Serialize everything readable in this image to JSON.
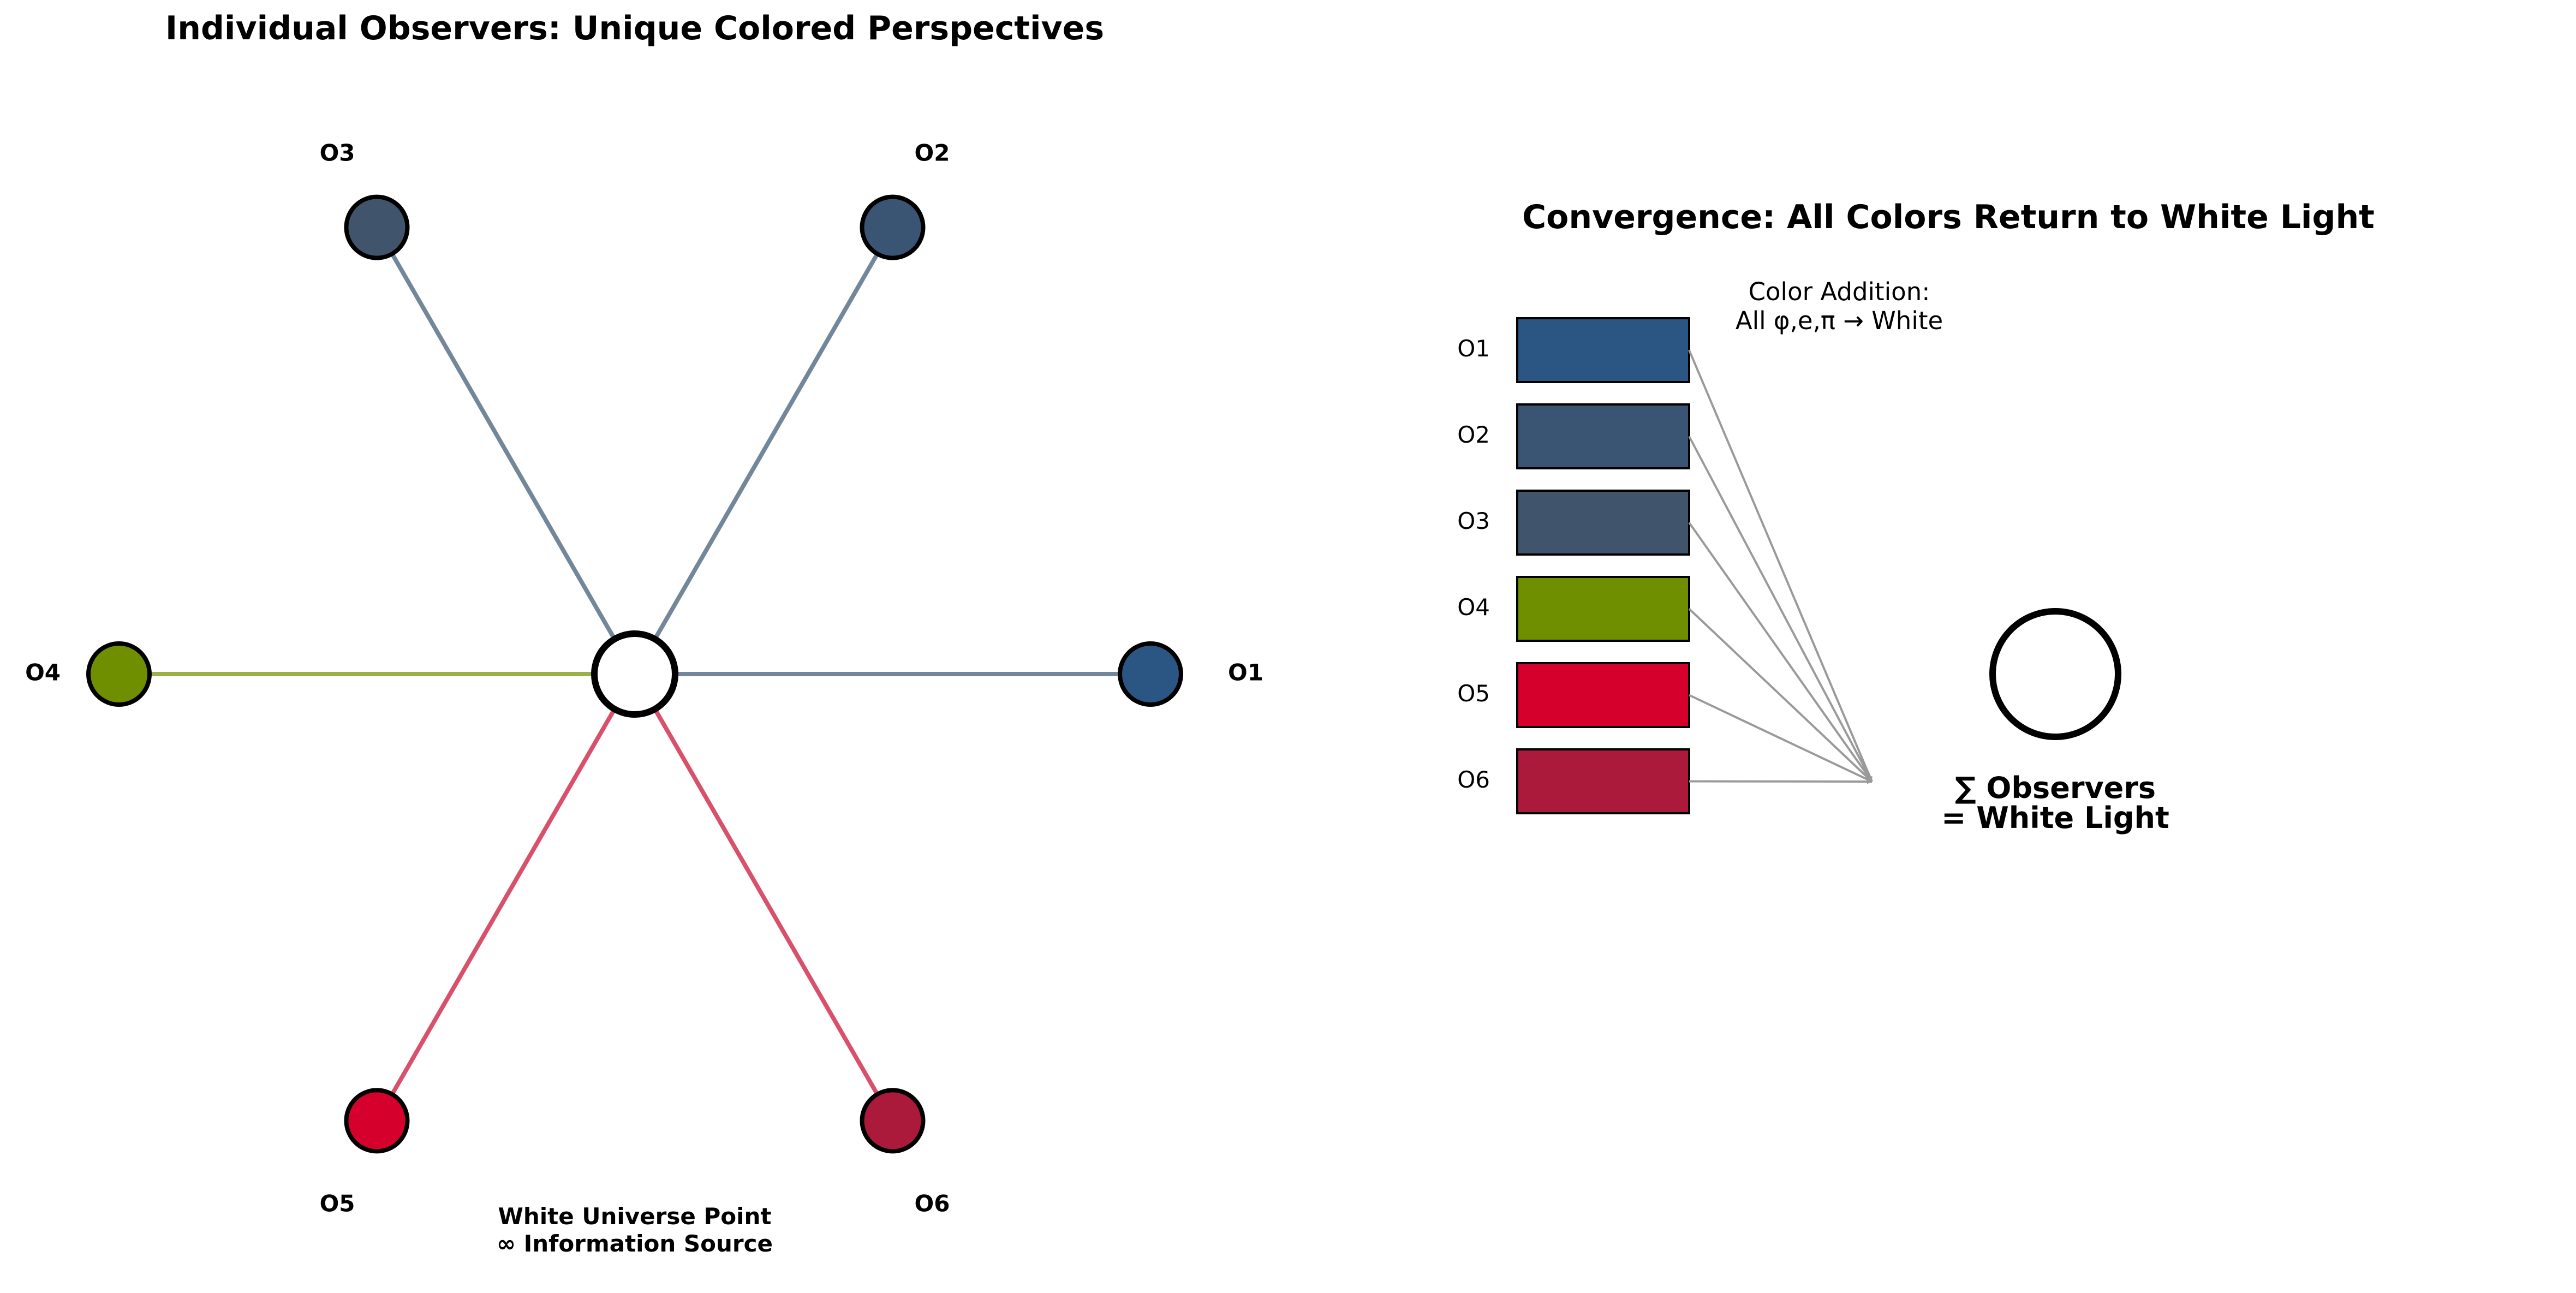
{
  "left_panel": {
    "title": "Individual Observers: Unique Colored Perspectives",
    "center_caption_line1": "White Universe Point",
    "center_caption_line2": "∞ Information Source",
    "observers": [
      {
        "label": "O1",
        "color": "#2b5582",
        "ray_color": "#73879b"
      },
      {
        "label": "O2",
        "color": "#3a5574",
        "ray_color": "#73879b"
      },
      {
        "label": "O3",
        "color": "#40556c",
        "ray_color": "#73879b"
      },
      {
        "label": "O4",
        "color": "#6f8f00",
        "ray_color": "#9bb046"
      },
      {
        "label": "O5",
        "color": "#d6002d",
        "ray_color": "#d9506b"
      },
      {
        "label": "O6",
        "color": "#ab1a3b",
        "ray_color": "#d9506b"
      }
    ]
  },
  "right_panel": {
    "title": "Convergence: All Colors Return to White Light",
    "note_line1": "Color Addition:",
    "note_line2": "All φ,e,π → White",
    "sum_line1": "∑ Observers",
    "sum_line2": "= White Light",
    "swatches": [
      {
        "label": "O1",
        "color": "#2b5582"
      },
      {
        "label": "O2",
        "color": "#3a5574"
      },
      {
        "label": "O3",
        "color": "#40556c"
      },
      {
        "label": "O4",
        "color": "#6f8f00"
      },
      {
        "label": "O5",
        "color": "#d6002d"
      },
      {
        "label": "O6",
        "color": "#ab1a3b"
      }
    ]
  }
}
